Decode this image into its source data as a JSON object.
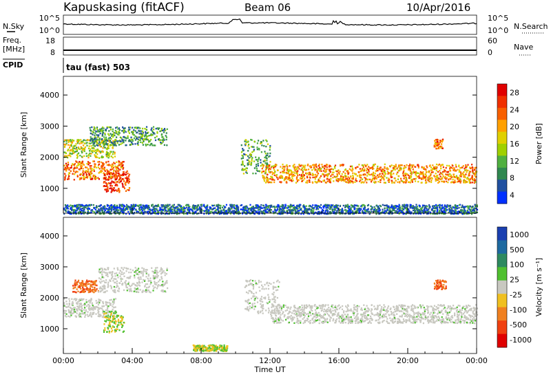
{
  "header": {
    "station": "Kapuskasing (fitACF)",
    "beam": "Beam 06",
    "date": "10/Apr/2016"
  },
  "panels": {
    "nsky_label": "N.Sky",
    "nsearch_label": "N.Search",
    "nsky_ticks": [
      "10^5",
      "10^0"
    ],
    "nsearch_ticks": [
      "10^5",
      "10^0"
    ],
    "freq_label_line1": "Freq.",
    "freq_label_line2": "[MHz]",
    "freq_ticks": [
      "18",
      "8"
    ],
    "nave_label": "Nave",
    "nave_ticks": [
      "60",
      "0"
    ],
    "cpid_label": "CPID",
    "cpid_text": "tau (fast) 503"
  },
  "colorbars": {
    "power": {
      "label": "Power [dB]",
      "ticks": [
        "28",
        "24",
        "20",
        "16",
        "12",
        "8",
        "4"
      ],
      "colors": [
        "#e00000",
        "#f03000",
        "#f86000",
        "#ffa000",
        "#e0d000",
        "#a0d000",
        "#50b040",
        "#308850",
        "#2050a0",
        "#0030ff"
      ]
    },
    "velocity": {
      "label": "Velocity [m s⁻¹]",
      "ticks": [
        "1000",
        "500",
        "100",
        "25",
        "-25",
        "-100",
        "-500",
        "-1000"
      ],
      "colors": [
        "#1a3fb0",
        "#1e6aa0",
        "#2e8a60",
        "#50c030",
        "#c8c8c0",
        "#f0c020",
        "#f08020",
        "#f04010",
        "#e00000"
      ]
    }
  },
  "chart_data": [
    {
      "type": "heatmap",
      "title": "",
      "xlabel": "",
      "ylabel": "Slant Range [km]",
      "x_ticks": [
        "00:00",
        "04:00",
        "08:00",
        "12:00",
        "16:00",
        "20:00",
        "00:00"
      ],
      "y_ticks": [
        "1000",
        "2000",
        "3000",
        "4000"
      ],
      "xlim_hours": [
        0,
        24
      ],
      "ylim_km": [
        200,
        4600
      ],
      "quantity": "Power [dB]",
      "color_range": [
        0,
        30
      ],
      "scatter_regions": [
        {
          "t_start": 0.0,
          "t_end": 3.5,
          "range_low_km": 1300,
          "range_high_km": 1900,
          "power_db": 22
        },
        {
          "t_start": 0.0,
          "t_end": 3.0,
          "range_low_km": 2000,
          "range_high_km": 2600,
          "power_db": 14
        },
        {
          "t_start": 2.3,
          "t_end": 3.8,
          "range_low_km": 900,
          "range_high_km": 1600,
          "power_db": 26
        },
        {
          "t_start": 1.5,
          "t_end": 6.0,
          "range_low_km": 2400,
          "range_high_km": 3000,
          "power_db": 9
        },
        {
          "t_start": 10.3,
          "t_end": 12.0,
          "range_low_km": 1500,
          "range_high_km": 2600,
          "power_db": 10
        },
        {
          "t_start": 11.5,
          "t_end": 24.0,
          "range_low_km": 1200,
          "range_high_km": 1800,
          "power_db": 20
        },
        {
          "t_start": 21.5,
          "t_end": 22.0,
          "range_low_km": 2300,
          "range_high_km": 2600,
          "power_db": 22
        },
        {
          "t_start": 0.0,
          "t_end": 24.0,
          "range_low_km": 200,
          "range_high_km": 500,
          "power_db": 5
        }
      ]
    },
    {
      "type": "heatmap",
      "title": "",
      "xlabel": "Time UT",
      "ylabel": "Slant Range [km]",
      "x_ticks": [
        "00:00",
        "04:00",
        "08:00",
        "12:00",
        "16:00",
        "20:00",
        "00:00"
      ],
      "y_ticks": [
        "1000",
        "2000",
        "3000",
        "4000"
      ],
      "xlim_hours": [
        0,
        24
      ],
      "ylim_km": [
        200,
        4600
      ],
      "quantity": "Velocity [m s-1]",
      "color_range": [
        -1000,
        1000
      ],
      "scatter_regions": [
        {
          "t_start": 0.0,
          "t_end": 3.0,
          "range_low_km": 1400,
          "range_high_km": 2000,
          "velocity": 0
        },
        {
          "t_start": 0.5,
          "t_end": 2.0,
          "range_low_km": 2200,
          "range_high_km": 2600,
          "velocity": -300
        },
        {
          "t_start": 2.3,
          "t_end": 3.5,
          "range_low_km": 900,
          "range_high_km": 1600,
          "velocity": 200
        },
        {
          "t_start": 2.0,
          "t_end": 6.0,
          "range_low_km": 2200,
          "range_high_km": 3000,
          "velocity": 0
        },
        {
          "t_start": 10.5,
          "t_end": 12.5,
          "range_low_km": 1500,
          "range_high_km": 2600,
          "velocity": 0
        },
        {
          "t_start": 12.0,
          "t_end": 24.0,
          "range_low_km": 1200,
          "range_high_km": 1800,
          "velocity": 0
        },
        {
          "t_start": 21.5,
          "t_end": 22.2,
          "range_low_km": 2300,
          "range_high_km": 2600,
          "velocity": -600
        },
        {
          "t_start": 7.5,
          "t_end": 9.5,
          "range_low_km": 300,
          "range_high_km": 500,
          "velocity": 150
        }
      ]
    }
  ]
}
